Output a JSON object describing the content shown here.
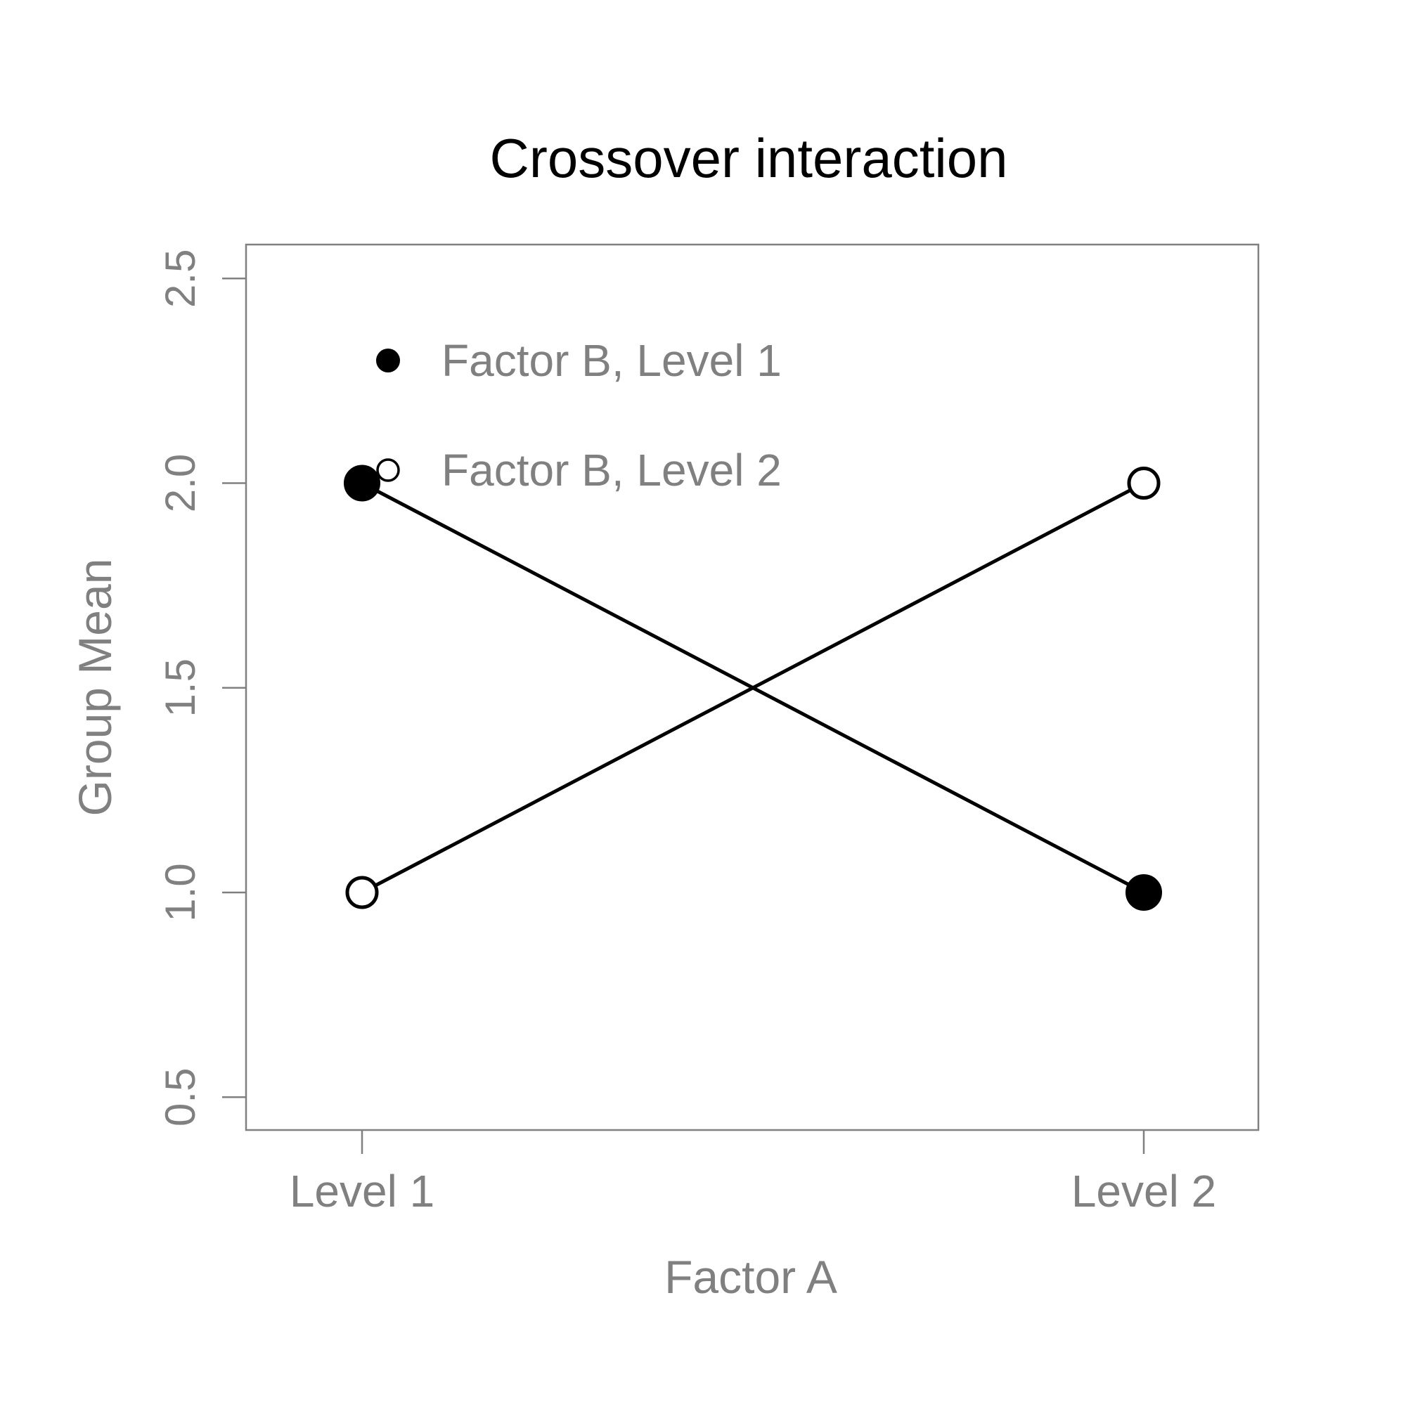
{
  "chart_data": {
    "type": "line",
    "title": "Crossover interaction",
    "xlabel": "Factor A",
    "ylabel": "Group Mean",
    "categories": [
      "Level 1",
      "Level 2"
    ],
    "ylim": [
      0.5,
      2.5
    ],
    "yticks": [
      0.5,
      1.0,
      1.5,
      2.0,
      2.5
    ],
    "ytick_labels": [
      "0.5",
      "1.0",
      "1.5",
      "2.0",
      "2.5"
    ],
    "grid": false,
    "legend_position": "top-left",
    "series": [
      {
        "name": "Factor B, Level 1",
        "values": [
          2.0,
          1.0
        ],
        "marker": "filled-circle"
      },
      {
        "name": "Factor B, Level 2",
        "values": [
          1.0,
          2.0
        ],
        "marker": "open-circle"
      }
    ],
    "colors": {
      "line": "#000000",
      "axis": "#808080",
      "text": "#808080",
      "title": "#000000"
    }
  }
}
